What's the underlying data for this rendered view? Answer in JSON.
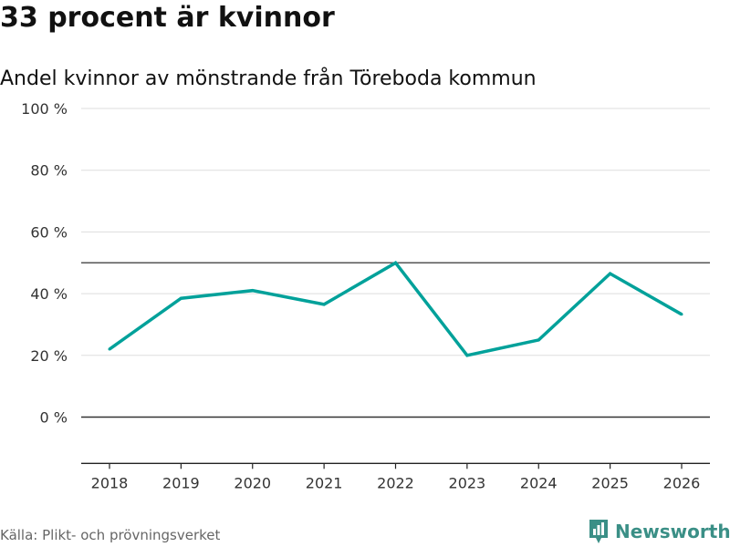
{
  "header": {
    "title": "33 procent är kvinnor",
    "subtitle": "Andel kvinnor av mönstrande från Töreboda kommun"
  },
  "footer": {
    "source": "Källa: Plikt- och prövningsverket",
    "brand": "Newsworthy",
    "brand_icon": "newsworthy-logo-icon"
  },
  "colors": {
    "line": "#00a19a",
    "grid": "#dddddd",
    "zero_line": "#333333",
    "reference_line": "#555555",
    "brand": "#3a8f86"
  },
  "chart_data": {
    "type": "line",
    "title": "33 procent är kvinnor",
    "subtitle": "Andel kvinnor av mönstrande från Töreboda kommun",
    "xlabel": "",
    "ylabel": "",
    "categories": [
      "2018",
      "2019",
      "2020",
      "2021",
      "2022",
      "2023",
      "2024",
      "2025",
      "2026"
    ],
    "series": [
      {
        "name": "Andel kvinnor",
        "values": [
          22,
          38.5,
          41,
          36.5,
          50,
          20,
          25,
          46.5,
          33.3
        ]
      }
    ],
    "ylim": [
      -15,
      100
    ],
    "yticks": [
      0,
      20,
      40,
      60,
      80,
      100
    ],
    "ytick_labels": [
      "0 %",
      "20 %",
      "40 %",
      "60 %",
      "80 %",
      "100 %"
    ],
    "reference_line": 50,
    "grid": true,
    "legend": "none"
  }
}
